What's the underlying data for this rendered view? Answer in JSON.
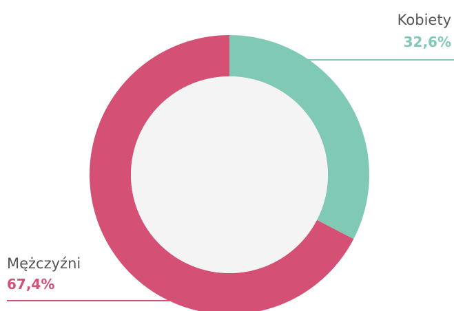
{
  "chart_data": {
    "type": "pie",
    "donut": true,
    "categories": [
      "Kobiety",
      "Mężczyźni"
    ],
    "values": [
      32.6,
      67.4
    ],
    "value_labels": [
      "32,6%",
      "67,4%"
    ],
    "colors": [
      "#80c9b4",
      "#d45074"
    ]
  }
}
